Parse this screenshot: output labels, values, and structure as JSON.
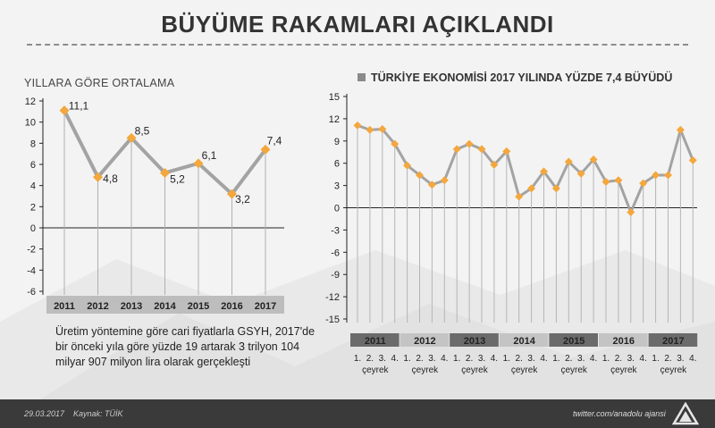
{
  "header": {
    "title": "BÜYÜME RAKAMLARI AÇIKLANDI"
  },
  "left_chart_title": "YILLARA GÖRE ORTALAMA",
  "right_chart_title": "TÜRKİYE EKONOMİSİ 2017 YILINDA YÜZDE 7,4 BÜYÜDÜ",
  "description": "Üretim yöntemine göre cari fiyatlarla GSYH, 2017'de bir önceki yıla göre yüzde 19 artarak 3 trilyon 104 milyar 907 milyon lira olarak gerçekleşti",
  "footer": {
    "date": "29.03.2017",
    "source": "Kaynak: TÜİK",
    "twitter": "twitter.com/anadolu ajansi"
  },
  "colors": {
    "line": "#a3a3a3",
    "marker": "#f4a73c",
    "band": "#6b6b6b",
    "footer": "#3a3a3a"
  },
  "chart_data": [
    {
      "type": "line",
      "title": "YILLARA GÖRE ORTALAMA",
      "categories": [
        "2011",
        "2012",
        "2013",
        "2014",
        "2015",
        "2016",
        "2017"
      ],
      "values": [
        11.1,
        4.8,
        8.5,
        5.2,
        6.1,
        3.2,
        7.4
      ],
      "value_labels": [
        "11,1",
        "4,8",
        "8,5",
        "5,2",
        "6,1",
        "3,2",
        "7,4"
      ],
      "yticks": [
        "12",
        "10",
        "8",
        "6",
        "4",
        "2",
        "0",
        "-2",
        "-4",
        "-6"
      ],
      "ylim": [
        -6,
        12
      ],
      "grid": false,
      "marker": "diamond"
    },
    {
      "type": "line",
      "title": "TÜRKİYE EKONOMİSİ 2017 YILINDA YÜZDE 7,4 BÜYÜDÜ",
      "years": [
        "2011",
        "2012",
        "2013",
        "2014",
        "2015",
        "2016",
        "2017"
      ],
      "quarter_labels": [
        "1.",
        "2.",
        "3.",
        "4."
      ],
      "period_word": "çeyrek",
      "values": [
        11.1,
        10.5,
        10.6,
        8.6,
        5.7,
        4.4,
        3.1,
        3.7,
        7.9,
        8.6,
        7.9,
        5.8,
        7.6,
        1.5,
        2.6,
        4.9,
        2.6,
        6.2,
        4.6,
        6.5,
        3.5,
        3.7,
        -0.6,
        3.3,
        4.4,
        4.4,
        10.5,
        6.4
      ],
      "yticks": [
        "15",
        "12",
        "9",
        "6",
        "3",
        "0",
        "-3",
        "-6",
        "-9",
        "-12",
        "-15"
      ],
      "ylim": [
        -15,
        15
      ],
      "grid": false,
      "marker": "diamond"
    }
  ]
}
